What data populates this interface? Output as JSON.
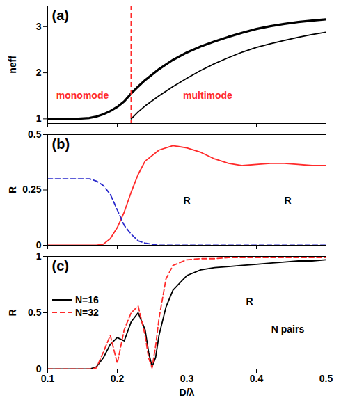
{
  "chart_data": [
    {
      "type": "line",
      "title": "(a)",
      "ylabel": "neff",
      "tick_labels": "y",
      "xlim": [
        0.1,
        0.5
      ],
      "xticks": [
        0.1,
        0.2,
        0.3,
        0.4,
        0.5
      ],
      "ylim": [
        0.9,
        3.45
      ],
      "yticks": [
        1,
        2,
        3
      ],
      "x": [
        0.1,
        0.12,
        0.14,
        0.16,
        0.17,
        0.18,
        0.19,
        0.2,
        0.21,
        0.22,
        0.23,
        0.24,
        0.26,
        0.28,
        0.3,
        0.32,
        0.34,
        0.36,
        0.38,
        0.4,
        0.42,
        0.44,
        0.46,
        0.48,
        0.5
      ],
      "series": [
        {
          "color": "#000000",
          "line_style": "bold",
          "values": [
            1.0,
            1.0,
            1.0,
            1.02,
            1.05,
            1.1,
            1.17,
            1.26,
            1.38,
            1.55,
            1.7,
            1.84,
            2.08,
            2.28,
            2.44,
            2.57,
            2.68,
            2.78,
            2.87,
            2.95,
            3.01,
            3.06,
            3.1,
            3.13,
            3.16
          ]
        },
        {
          "color": "#000000",
          "line_style": "solid",
          "values": [
            null,
            null,
            null,
            null,
            null,
            null,
            null,
            null,
            null,
            1.0,
            1.15,
            1.28,
            1.5,
            1.7,
            1.88,
            2.05,
            2.2,
            2.33,
            2.45,
            2.55,
            2.63,
            2.7,
            2.77,
            2.83,
            2.88
          ]
        }
      ],
      "vertical_line": {
        "x": 0.22,
        "color": "#ff2a2a",
        "line_style": "dashed"
      },
      "annotations": [
        {
          "text": "monomode",
          "x": 0.15,
          "y": 1.5,
          "color": "#ff2a2a"
        },
        {
          "text": "multimode",
          "x": 0.33,
          "y": 1.5,
          "color": "#ff2a2a"
        }
      ]
    },
    {
      "type": "line",
      "title": "(b)",
      "ylabel": "R",
      "tick_labels": "y",
      "xlim": [
        0.1,
        0.5
      ],
      "xticks": [
        0.1,
        0.2,
        0.3,
        0.4,
        0.5
      ],
      "ylim": [
        0,
        0.5
      ],
      "yticks": [
        0,
        0.25,
        0.5
      ],
      "x": [
        0.1,
        0.12,
        0.14,
        0.16,
        0.17,
        0.18,
        0.19,
        0.2,
        0.21,
        0.22,
        0.23,
        0.24,
        0.26,
        0.28,
        0.3,
        0.32,
        0.34,
        0.36,
        0.38,
        0.4,
        0.42,
        0.44,
        0.46,
        0.48,
        0.5
      ],
      "series": [
        {
          "color": "#ff2a2a",
          "line_style": "solid",
          "values": [
            0,
            0,
            0,
            0,
            0,
            0.005,
            0.03,
            0.08,
            0.15,
            0.24,
            0.32,
            0.38,
            0.43,
            0.45,
            0.44,
            0.42,
            0.39,
            0.37,
            0.36,
            0.365,
            0.37,
            0.37,
            0.365,
            0.36,
            0.36
          ]
        },
        {
          "color": "#2a2acc",
          "line_style": "dashed",
          "values": [
            0.3,
            0.3,
            0.3,
            0.3,
            0.29,
            0.27,
            0.23,
            0.16,
            0.09,
            0.05,
            0.02,
            0.01,
            0,
            0,
            0,
            0,
            0,
            0,
            0,
            0,
            0,
            0,
            0,
            0,
            0
          ]
        }
      ],
      "annotations": [
        {
          "text": "R",
          "x": 0.3,
          "y": 0.2,
          "color": "#000000"
        },
        {
          "text": "R",
          "x": 0.445,
          "y": 0.2,
          "color": "#000000"
        }
      ]
    },
    {
      "type": "line",
      "title": "(c)",
      "ylabel": "R",
      "xlabel": "D/λ",
      "legend": "left",
      "xlim": [
        0.1,
        0.5
      ],
      "xticks": [
        0.1,
        0.2,
        0.3,
        0.4,
        0.5
      ],
      "ylim": [
        0,
        1
      ],
      "yticks": [
        0,
        0.5,
        1
      ],
      "x": [
        0.1,
        0.12,
        0.14,
        0.16,
        0.17,
        0.18,
        0.19,
        0.2,
        0.21,
        0.22,
        0.23,
        0.24,
        0.245,
        0.25,
        0.255,
        0.26,
        0.27,
        0.28,
        0.3,
        0.32,
        0.34,
        0.36,
        0.38,
        0.4,
        0.42,
        0.44,
        0.46,
        0.48,
        0.5
      ],
      "series": [
        {
          "name": "N=16",
          "color": "#000000",
          "line_style": "solid",
          "values": [
            0,
            0,
            0,
            0,
            0.02,
            0.1,
            0.22,
            0.28,
            0.25,
            0.42,
            0.5,
            0.35,
            0.15,
            0.02,
            0.1,
            0.3,
            0.55,
            0.7,
            0.83,
            0.88,
            0.9,
            0.91,
            0.92,
            0.93,
            0.94,
            0.95,
            0.96,
            0.96,
            0.97
          ]
        },
        {
          "name": "N=32",
          "color": "#ff2a2a",
          "line_style": "dashed",
          "values": [
            0,
            0,
            0,
            0,
            0.01,
            0.15,
            0.3,
            0.05,
            0.35,
            0.5,
            0.56,
            0.3,
            0.1,
            0.01,
            0.2,
            0.45,
            0.8,
            0.92,
            0.97,
            0.98,
            0.98,
            0.99,
            0.99,
            0.99,
            0.99,
            0.99,
            0.99,
            0.99,
            0.99
          ]
        }
      ],
      "annotations": [
        {
          "text": "R",
          "x": 0.39,
          "y": 0.6,
          "color": "#000000"
        },
        {
          "text": "N pairs",
          "x": 0.445,
          "y": 0.35,
          "color": "#000000"
        }
      ]
    }
  ]
}
